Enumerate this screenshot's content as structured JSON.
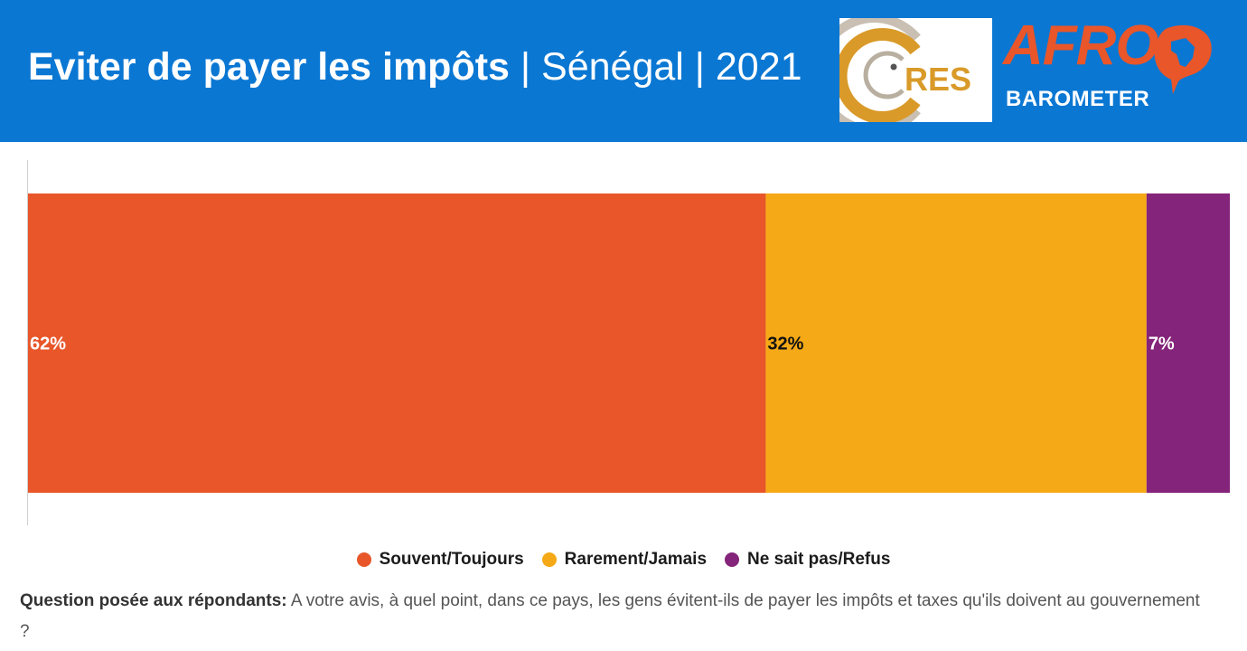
{
  "header": {
    "title_main": "Eviter de payer les impôts",
    "title_rest": " | Sénégal | 2021",
    "cres_logo_text": "RES",
    "afro_text": "AFRO",
    "barometer_text": "BAROMETER"
  },
  "colors": {
    "header_bg": "#0a77d3",
    "souvent": "#e8562a",
    "rarement": "#f5a916",
    "ne_sait_pas": "#84247a"
  },
  "chart_data": {
    "type": "bar",
    "orientation": "horizontal",
    "stacked": true,
    "categories": [
      ""
    ],
    "series": [
      {
        "name": "Souvent/Toujours",
        "values": [
          62
        ],
        "label": "62%",
        "color": "#e8562a",
        "label_color": "#ffffff"
      },
      {
        "name": "Rarement/Jamais",
        "values": [
          32
        ],
        "label": "32%",
        "color": "#f5a916",
        "label_color": "#111111"
      },
      {
        "name": "Ne sait pas/Refus",
        "values": [
          7
        ],
        "label": "7%",
        "color": "#84247a",
        "label_color": "#ffffff"
      }
    ],
    "xlim": [
      0,
      101
    ],
    "legend_position": "bottom",
    "grid": false
  },
  "legend": [
    {
      "label": "Souvent/Toujours",
      "color": "#e8562a"
    },
    {
      "label": "Rarement/Jamais",
      "color": "#f5a916"
    },
    {
      "label": "Ne sait pas/Refus",
      "color": "#84247a"
    }
  ],
  "note": {
    "bold": "Question posée aux répondants:",
    "text": " A votre avis, à quel point, dans ce pays, les gens évitent-ils de payer les impôts et taxes qu'ils doivent au gouvernement ?"
  }
}
